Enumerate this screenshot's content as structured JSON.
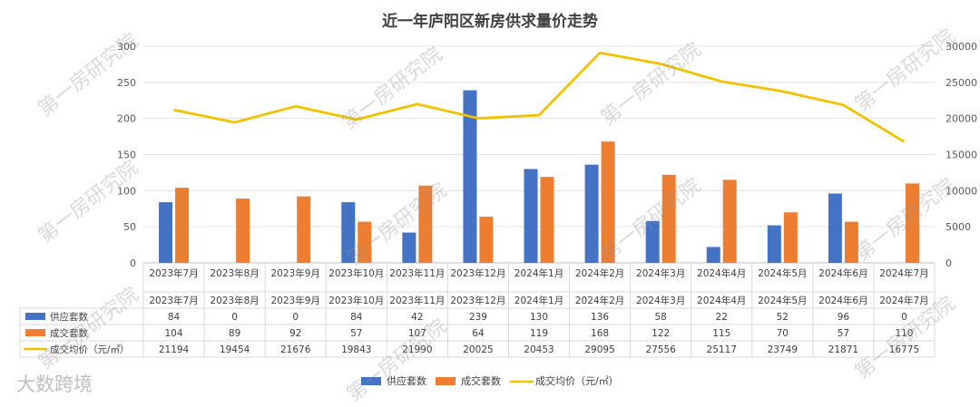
{
  "watermarks": [
    "第一房研究院",
    "大数跨境"
  ],
  "chart_data": {
    "type": "bar",
    "title": "近一年庐阳区新房供求量价走势",
    "categories": [
      "2023年7月",
      "2023年8月",
      "2023年9月",
      "2023年10月",
      "2023年11月",
      "2023年12月",
      "2024年1月",
      "2024年2月",
      "2024年3月",
      "2024年4月",
      "2024年5月",
      "2024年6月",
      "2024年7月"
    ],
    "series": [
      {
        "name": "供应套数",
        "kind": "bar",
        "axis": "left",
        "color": "#4472C4",
        "values": [
          84,
          0,
          0,
          84,
          42,
          239,
          130,
          136,
          58,
          22,
          52,
          96,
          0
        ]
      },
      {
        "name": "成交套数",
        "kind": "bar",
        "axis": "left",
        "color": "#ED7D31",
        "values": [
          104,
          89,
          92,
          57,
          107,
          64,
          119,
          168,
          122,
          115,
          70,
          57,
          110
        ]
      },
      {
        "name": "成交均价（元/㎡）",
        "kind": "line",
        "axis": "right",
        "color": "#F2C200",
        "values": [
          21194,
          19454,
          21676,
          19843,
          21990,
          20025,
          20453,
          29095,
          27556,
          25117,
          23749,
          21871,
          16775
        ]
      }
    ],
    "left_axis": {
      "min": 0,
      "max": 300,
      "ticks": [
        0,
        50,
        100,
        150,
        200,
        250,
        300
      ]
    },
    "right_axis": {
      "min": 0,
      "max": 30000,
      "ticks": [
        0,
        5000,
        10000,
        15000,
        20000,
        25000,
        30000
      ]
    },
    "legend_position": "bottom",
    "grid": true,
    "data_table": true
  }
}
